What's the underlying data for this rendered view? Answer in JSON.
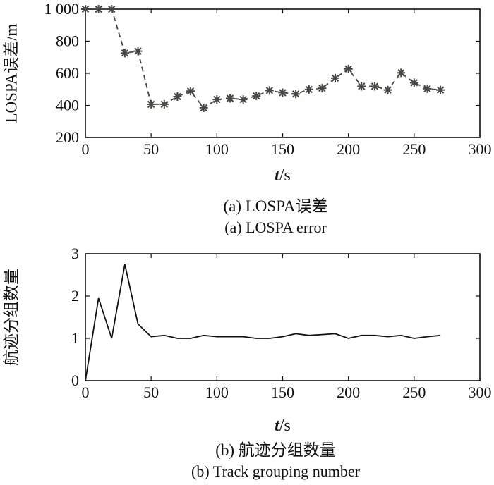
{
  "chart_data": [
    {
      "type": "line",
      "title": "(a) LOSPA误差",
      "subtitle": "(a) LOSPA error",
      "xlabel_italic": "t",
      "xlabel_unit": "/s",
      "ylabel": "LOSPA误差/m",
      "xlim": [
        0,
        300
      ],
      "ylim": [
        200,
        1000
      ],
      "xticks": [
        0,
        50,
        100,
        150,
        200,
        250,
        300
      ],
      "yticks": [
        200,
        400,
        600,
        800,
        1000
      ],
      "ytick_labels": [
        "200",
        "400",
        "600",
        "800",
        "1 000"
      ],
      "line_style": "dashed",
      "marker": "asterisk",
      "color": "#4a4545",
      "x": [
        0,
        10,
        20,
        30,
        40,
        50,
        60,
        70,
        80,
        90,
        100,
        110,
        120,
        130,
        140,
        150,
        160,
        170,
        180,
        190,
        200,
        210,
        220,
        230,
        240,
        250,
        260,
        270
      ],
      "y": [
        1000,
        1000,
        1000,
        726,
        738,
        407,
        407,
        455,
        489,
        385,
        437,
        444,
        437,
        459,
        493,
        479,
        471,
        499,
        507,
        570,
        627,
        519,
        519,
        496,
        603,
        541,
        504,
        496
      ]
    },
    {
      "type": "line",
      "title": "(b) 航迹分组数量",
      "subtitle": "(b) Track grouping number",
      "xlabel_italic": "t",
      "xlabel_unit": "/s",
      "ylabel": "航迹分组数量",
      "xlim": [
        0,
        300
      ],
      "ylim": [
        0,
        3
      ],
      "xticks": [
        0,
        50,
        100,
        150,
        200,
        250,
        300
      ],
      "yticks": [
        0,
        1,
        2,
        3
      ],
      "ytick_labels": [
        "0",
        "1",
        "2",
        "3"
      ],
      "line_style": "solid",
      "color": "#111111",
      "x": [
        0,
        10,
        20,
        30,
        40,
        50,
        60,
        70,
        80,
        90,
        100,
        110,
        120,
        130,
        140,
        150,
        160,
        170,
        180,
        190,
        200,
        210,
        220,
        230,
        240,
        250,
        260,
        270
      ],
      "y": [
        0,
        1.95,
        1,
        2.75,
        1.34,
        1.04,
        1.07,
        1,
        1,
        1.07,
        1.04,
        1.04,
        1.04,
        1,
        1,
        1.04,
        1.11,
        1.07,
        1.09,
        1.11,
        1,
        1.07,
        1.07,
        1.04,
        1.07,
        1,
        1.04,
        1.07
      ]
    }
  ]
}
